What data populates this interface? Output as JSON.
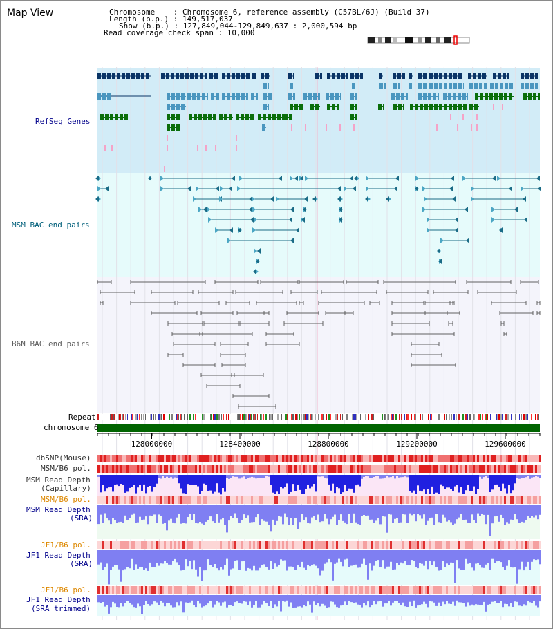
{
  "view_title": "Map View",
  "info": {
    "chromosome_line": "Chromosome    : Chromosome 6, reference assembly (C57BL/6J) (Build 37)",
    "length_line": "Length (b.p.) : 149,517,037",
    "show_line": "Show (b.p.) : 127,849,044-129,849,637 : 2,000,594 bp",
    "coverage_line": "Read coverage check span : 10,000"
  },
  "tracks": {
    "refseq": "RefSeq Genes",
    "msm_bac": "MSM BAC end pairs",
    "b6n_bac": "B6N BAC end pairs",
    "repeat": "Repeat",
    "chromosome": "chromosome 6",
    "dbsnp": "dbSNP(Mouse)",
    "msm_b6_pol": "MSM/B6 pol.",
    "msm_depth_cap_1": "MSM Read Depth",
    "msm_depth_cap_2": "(Capillary)",
    "msm_b6_pol_sra": "MSM/B6 pol.",
    "msm_depth_sra_1": "MSM Read Depth",
    "msm_depth_sra_2": "(SRA)",
    "jf1_b6_pol": "JF1/B6 pol.",
    "jf1_depth_sra_1": "JF1 Read Depth",
    "jf1_depth_sra_2": "(SRA)",
    "jf1_b6_pol_trim": "JF1/B6 pol.",
    "jf1_depth_trim_1": "JF1 Read Depth",
    "jf1_depth_trim_2": "(SRA trimmed)"
  },
  "axis_ticks": [
    "128000000",
    "128400000",
    "128800000",
    "129200000",
    "129600000"
  ],
  "colors": {
    "refseq_bg": "#d2ecf7",
    "msm_bac_bg": "#e6fbfb",
    "b6n_bac_bg": "#f4f4fb",
    "chromosome_bar": "#006400",
    "refseq_dark": "#0a3466",
    "refseq_mid": "#4a96bf",
    "refseq_green": "#0b6e0b",
    "refseq_pink": "#f5a3c7",
    "msm_line": "#1a6b86",
    "b6n_line": "#606060",
    "label_blue": "#00008b",
    "label_teal": "#005f7a",
    "label_orange": "#dd8800"
  }
}
